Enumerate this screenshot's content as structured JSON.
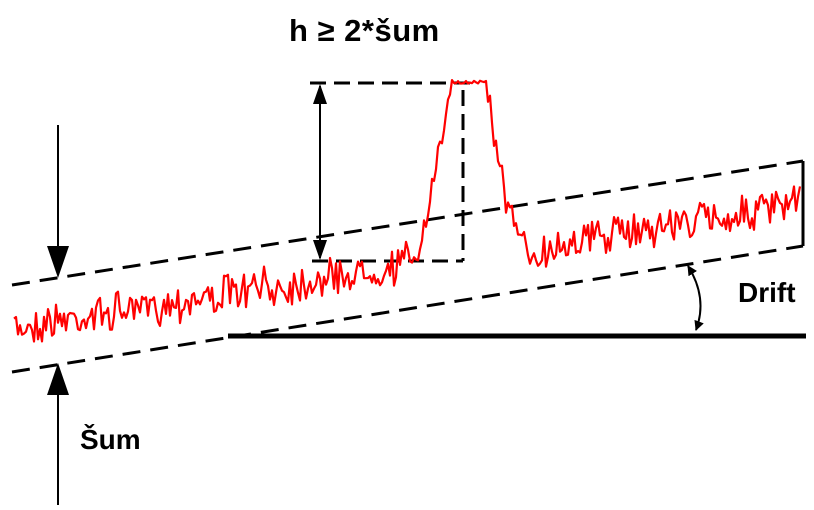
{
  "labels": {
    "threshold": "h ≥ 2*šum",
    "drift": "Drift",
    "noise": "Šum"
  },
  "colors": {
    "signal": "#ff0000",
    "lines": "#000000",
    "background": "#ffffff"
  }
}
